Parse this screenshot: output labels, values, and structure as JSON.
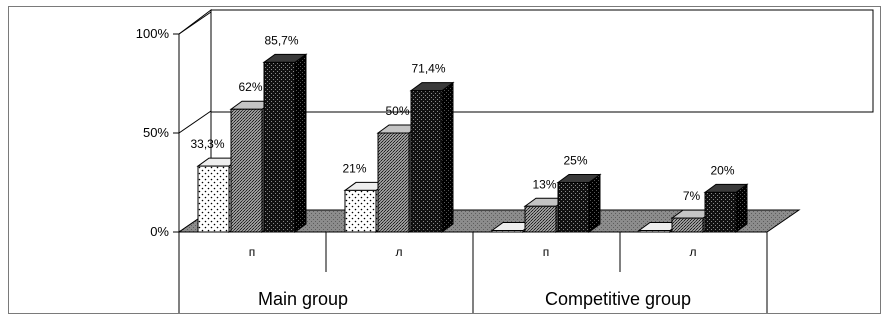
{
  "chart_data": {
    "type": "bar",
    "style": "3d-clustered",
    "ylim": [
      0,
      100
    ],
    "yticks": [
      {
        "value": 0,
        "label": "0%"
      },
      {
        "value": 50,
        "label": "50%"
      },
      {
        "value": 100,
        "label": "100%"
      }
    ],
    "categories": [
      "п",
      "л",
      "п",
      "л"
    ],
    "groups": [
      {
        "label": "Main group",
        "categories": [
          0,
          1
        ]
      },
      {
        "label": "Competitive group",
        "categories": [
          2,
          3
        ]
      }
    ],
    "series": [
      {
        "pattern": "dotted",
        "values": [
          33.3,
          21,
          0,
          0
        ],
        "labels": [
          "33,3%",
          "21%",
          "",
          ""
        ]
      },
      {
        "pattern": "crosshatch-grey",
        "values": [
          62,
          50,
          13,
          7
        ],
        "labels": [
          "62%",
          "50%",
          "13%",
          "7%"
        ]
      },
      {
        "pattern": "dark-checker",
        "values": [
          85.7,
          71.4,
          25,
          20
        ],
        "labels": [
          "85,7%",
          "71,4%",
          "25%",
          "20%"
        ]
      }
    ],
    "grid": false,
    "legend": "none"
  }
}
